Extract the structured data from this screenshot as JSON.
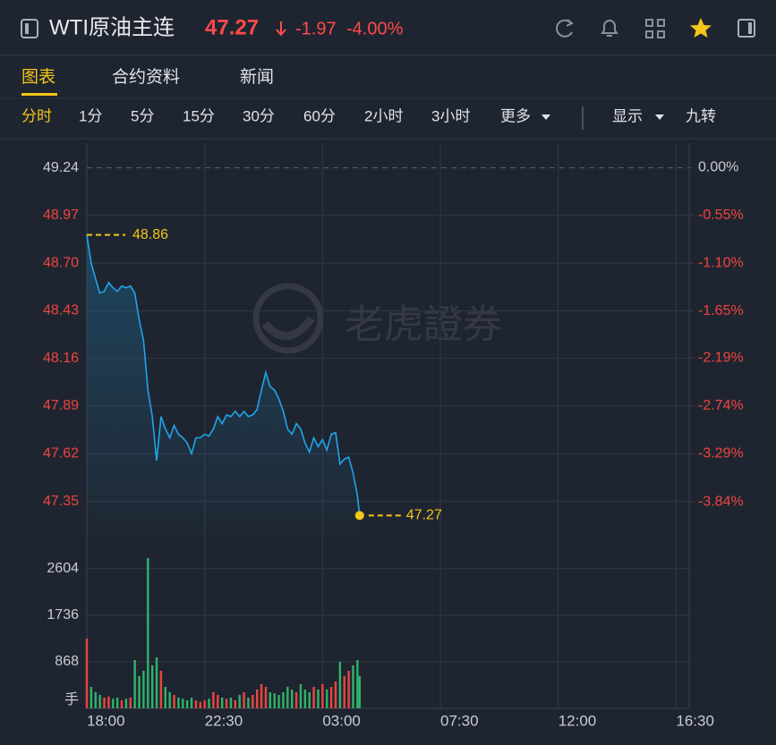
{
  "header": {
    "title": "WTI原油主连",
    "price": 47.27,
    "change": -1.97,
    "change_pct": "-4.00%"
  },
  "tabs": [
    "图表",
    "合约资料",
    "新闻"
  ],
  "intervals": [
    "分时",
    "1分",
    "5分",
    "15分",
    "30分",
    "60分",
    "2小时",
    "3小时",
    "更多"
  ],
  "toolbar": [
    "显示",
    "九转"
  ],
  "watermark": "老虎證券",
  "chart_data": {
    "type": "line",
    "x": [
      "18:00",
      "18:10",
      "18:20",
      "18:30",
      "18:40",
      "18:50",
      "19:00",
      "19:10",
      "19:20",
      "19:30",
      "19:40",
      "19:50",
      "20:00",
      "20:10",
      "20:20",
      "20:30",
      "20:40",
      "20:50",
      "21:00",
      "21:10",
      "21:20",
      "21:30",
      "21:40",
      "21:50",
      "22:00",
      "22:10",
      "22:20",
      "22:30",
      "22:40",
      "22:50",
      "23:00",
      "23:10",
      "23:20",
      "23:30",
      "23:40",
      "23:50",
      "00:00",
      "00:10",
      "00:20",
      "00:30",
      "00:40",
      "00:50",
      "01:00",
      "01:10",
      "01:20",
      "01:30",
      "01:40",
      "01:50",
      "02:00",
      "02:10",
      "02:20",
      "02:30",
      "02:40",
      "02:50",
      "03:00",
      "03:10",
      "03:20",
      "03:30",
      "03:40",
      "03:50",
      "04:00",
      "04:10",
      "04:20",
      "04:25"
    ],
    "xlim": [
      "18:00",
      "17:00"
    ],
    "xticks": [
      "18:00",
      "22:30",
      "03:00",
      "07:30",
      "12:00",
      "16:30"
    ],
    "ylim": [
      47.15,
      49.38
    ],
    "yticks": [
      49.24,
      48.97,
      {
        "value": 48.7,
        "label": "48.70"
      },
      48.43,
      48.16,
      47.89,
      47.62,
      47.35
    ],
    "y2lim": [
      -4.24,
      0.28
    ],
    "y2ticks": [
      {
        "value": 0,
        "label": "0.00%"
      },
      {
        "value": -0.55,
        "label": "-0.55%"
      },
      {
        "value": -1.1,
        "label": "-1.10%"
      },
      {
        "value": -1.65,
        "label": "-1.65%"
      },
      {
        "value": -2.19,
        "label": "-2.19%"
      },
      {
        "value": -2.74,
        "label": "-2.74%"
      },
      {
        "value": -3.29,
        "label": "-3.29%"
      },
      {
        "value": -3.84,
        "label": "-3.84%"
      }
    ],
    "series": [
      {
        "color": "#1ea5ea",
        "values": [
          48.86,
          48.7,
          48.61,
          48.53,
          48.54,
          48.59,
          48.56,
          48.54,
          48.57,
          48.56,
          48.57,
          48.53,
          48.38,
          48.26,
          47.98,
          47.83,
          47.58,
          47.83,
          47.76,
          47.71,
          47.78,
          47.73,
          47.71,
          47.68,
          47.62,
          47.71,
          47.71,
          47.73,
          47.72,
          47.76,
          47.83,
          47.79,
          47.84,
          47.83,
          47.86,
          47.83,
          47.86,
          47.83,
          47.84,
          47.87,
          47.98,
          48.08,
          48.0,
          47.98,
          47.93,
          47.86,
          47.76,
          47.73,
          47.79,
          47.76,
          47.68,
          47.63,
          47.71,
          47.66,
          47.7,
          47.64,
          47.73,
          47.74,
          47.56,
          47.59,
          47.6,
          47.51,
          47.38,
          47.27
        ]
      }
    ],
    "annotations": [
      48.86,
      47.27
    ],
    "annotation_color": "#f5c518",
    "grid": true,
    "volume": {
      "type": "bar",
      "values": [
        1300,
        400,
        300,
        250,
        200,
        220,
        180,
        200,
        150,
        180,
        200,
        900,
        600,
        700,
        2800,
        800,
        950,
        700,
        400,
        300,
        250,
        200,
        180,
        150,
        200,
        150,
        120,
        150,
        180,
        300,
        250,
        200,
        180,
        200,
        150,
        250,
        300,
        200,
        250,
        350,
        450,
        400,
        300,
        280,
        250,
        300,
        400,
        350,
        300,
        450,
        350,
        300,
        400,
        350,
        450,
        350,
        400,
        500,
        870,
        600,
        700,
        800,
        900,
        600
      ],
      "ylim": [
        0,
        3200
      ],
      "yticks": [
        868,
        1736,
        2604
      ],
      "unit_label": "手",
      "up_color": "#e8473f",
      "down_color": "#2fb36a"
    }
  }
}
